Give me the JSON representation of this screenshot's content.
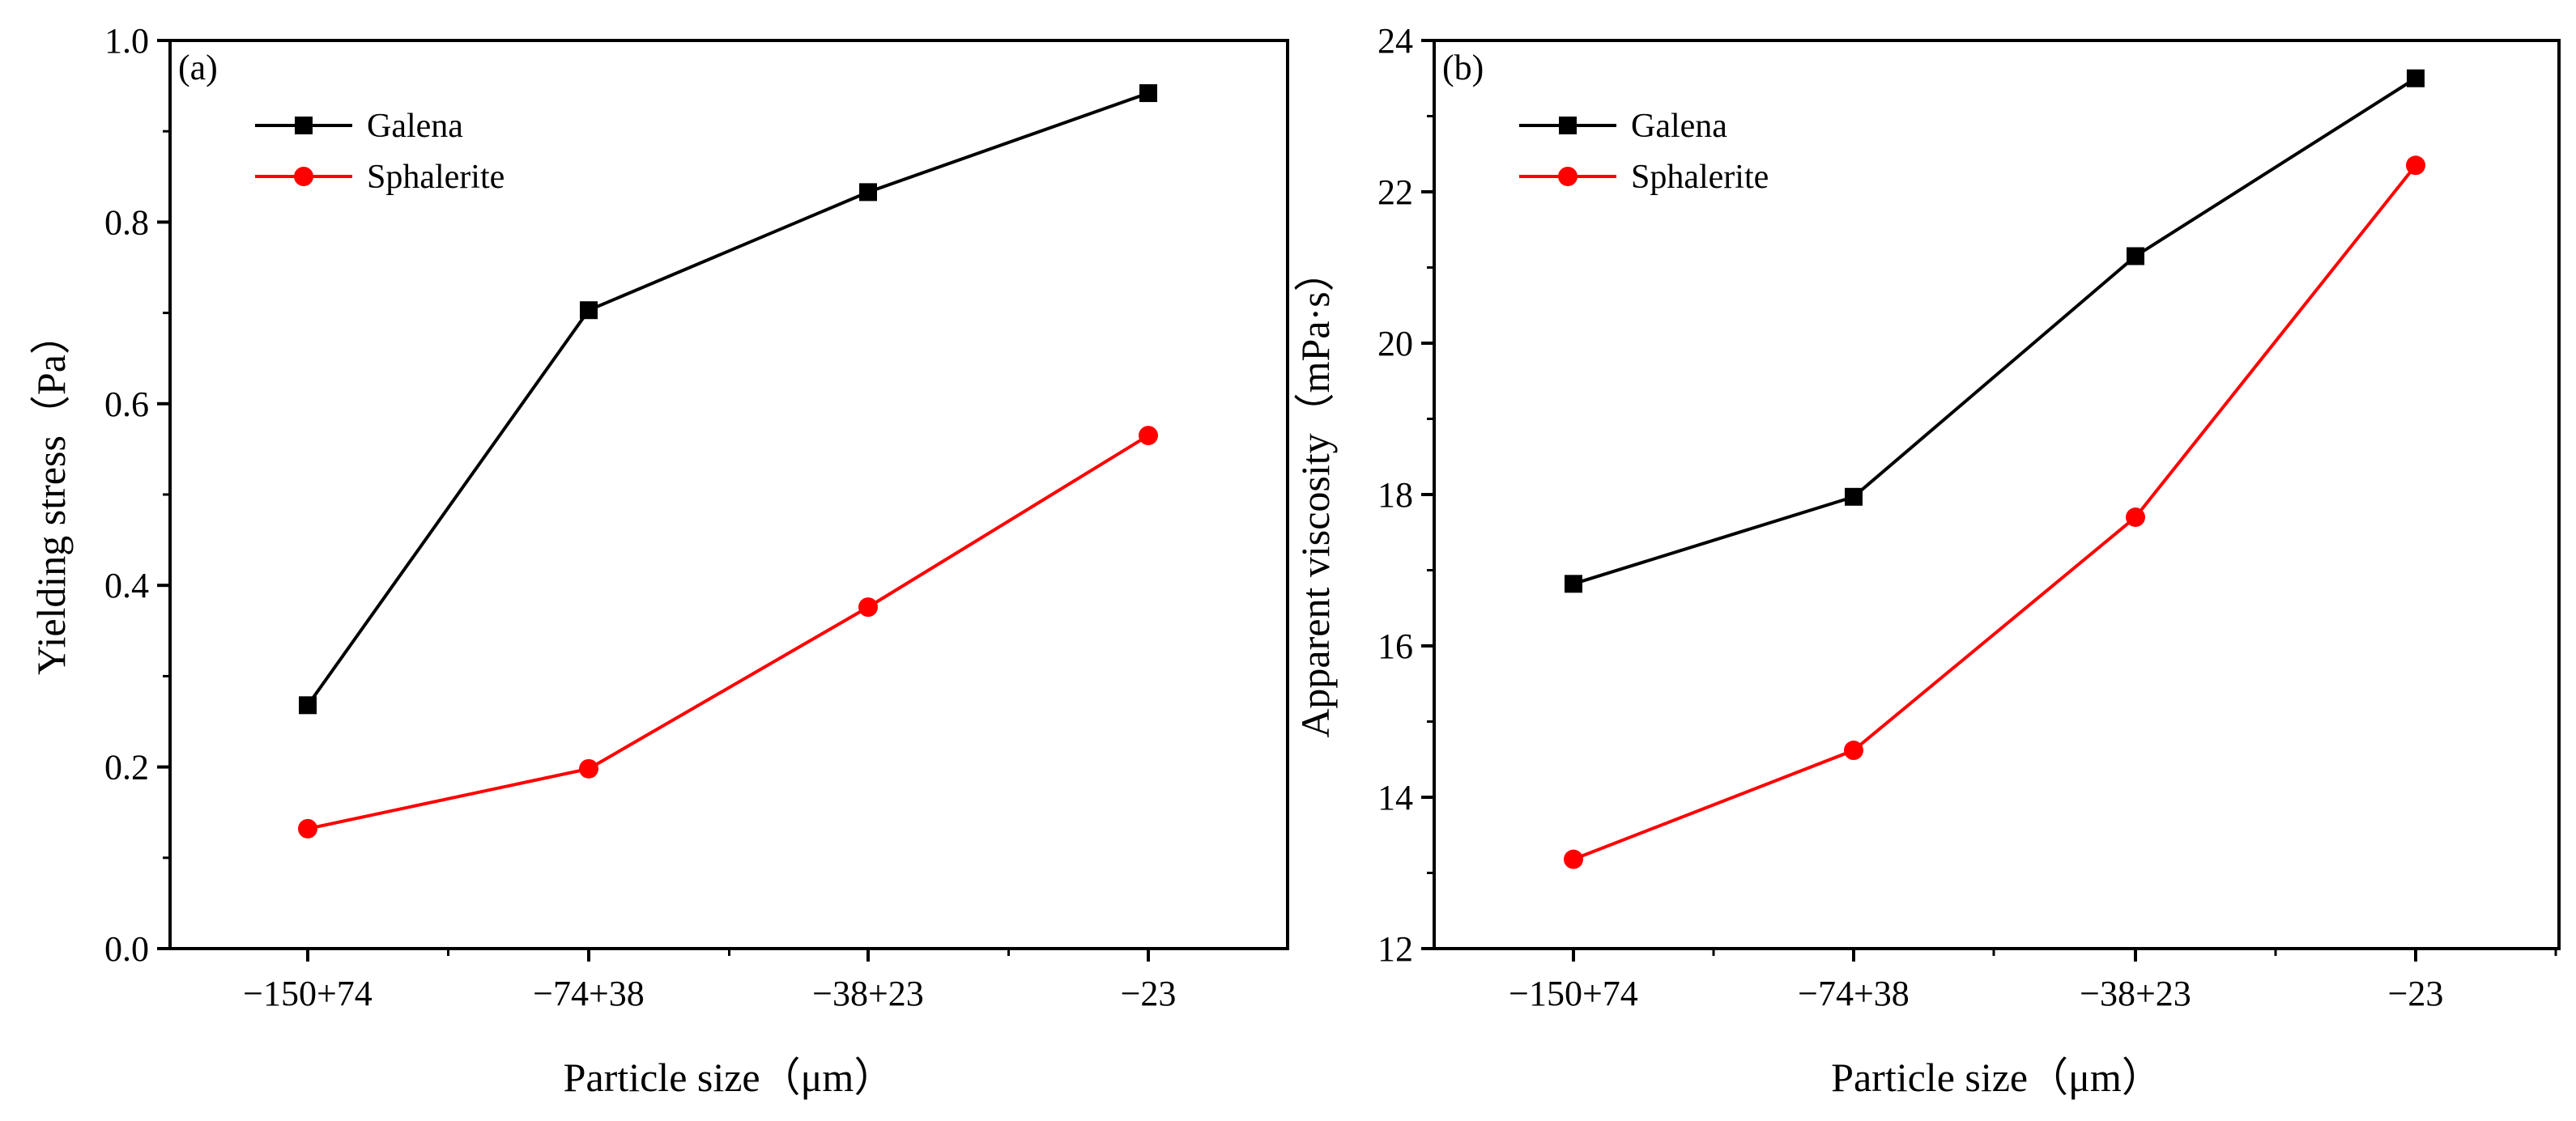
{
  "chart_data": [
    {
      "type": "line",
      "panel_label": "(a)",
      "categories": [
        "−150+74",
        "−74+38",
        "−38+23",
        "−23"
      ],
      "series": [
        {
          "name": "Galena",
          "color": "#000000",
          "marker": "square",
          "values": [
            0.268,
            0.703,
            0.833,
            0.942
          ]
        },
        {
          "name": "Sphalerite",
          "color": "#ff0000",
          "marker": "circle",
          "values": [
            0.132,
            0.198,
            0.376,
            0.565
          ]
        }
      ],
      "xlabel": "Particle size（μm）",
      "ylabel": "Yielding stress（Pa）",
      "ylim": [
        0.0,
        1.0
      ],
      "yticks": [
        0.0,
        0.2,
        0.4,
        0.6,
        0.8,
        1.0
      ],
      "ytick_labels": [
        "0.0",
        "0.2",
        "0.4",
        "0.6",
        "0.8",
        "1.0"
      ],
      "minor_yticks": [
        0.1,
        0.3,
        0.5,
        0.7,
        0.9
      ],
      "legend": "top-left",
      "grid": false
    },
    {
      "type": "line",
      "panel_label": "(b)",
      "categories": [
        "−150+74",
        "−74+38",
        "−38+23",
        "−23"
      ],
      "series": [
        {
          "name": "Galena",
          "color": "#000000",
          "marker": "square",
          "values": [
            16.82,
            17.97,
            21.15,
            23.5
          ]
        },
        {
          "name": "Sphalerite",
          "color": "#ff0000",
          "marker": "circle",
          "values": [
            13.18,
            14.62,
            17.7,
            22.35
          ]
        }
      ],
      "xlabel": "Particle size（μm）",
      "ylabel": "Apparent viscosity（mPa·s）",
      "ylim": [
        12,
        24
      ],
      "yticks": [
        12,
        14,
        16,
        18,
        20,
        22,
        24
      ],
      "ytick_labels": [
        "12",
        "14",
        "16",
        "18",
        "20",
        "22",
        "24"
      ],
      "minor_yticks": [
        13,
        15,
        17,
        19,
        21,
        23
      ],
      "legend": "top-left",
      "grid": false
    }
  ]
}
